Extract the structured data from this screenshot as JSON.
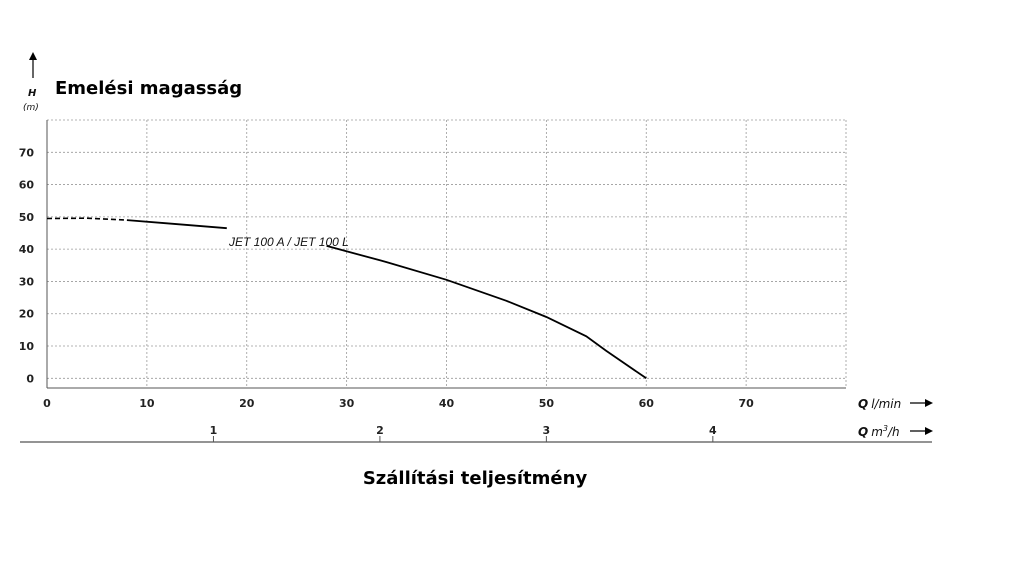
{
  "chart_data": {
    "type": "line",
    "title": "Emelési magasság",
    "xlabel": "Szállítási teljesítmény",
    "ylabel": "H",
    "ylabel_unit": "(m)",
    "x_unit_label": {
      "symbol": "Q",
      "unit": "l/min"
    },
    "x2_unit_label": {
      "symbol": "Q",
      "unit_base": "m",
      "unit_sup": "3",
      "unit_tail": "/h"
    },
    "xlim": [
      0,
      80
    ],
    "ylim": [
      -3,
      80
    ],
    "x_ticks": [
      "0",
      "10",
      "20",
      "30",
      "40",
      "50",
      "60",
      "70"
    ],
    "y_ticks": [
      "0",
      "10",
      "20",
      "30",
      "40",
      "50",
      "60",
      "70"
    ],
    "x2_ticks": [
      "1",
      "2",
      "3",
      "4"
    ],
    "grid": true,
    "series": [
      {
        "name": "JET 100 A / JET 100 L",
        "dashed_until_x": 8,
        "x": [
          0,
          4,
          8,
          12,
          18,
          28,
          34,
          40,
          46,
          50,
          54,
          56,
          60
        ],
        "y": [
          49.5,
          49.6,
          49,
          48,
          46.5,
          41,
          36,
          30.5,
          24,
          19,
          13,
          8.5,
          0
        ]
      }
    ]
  }
}
